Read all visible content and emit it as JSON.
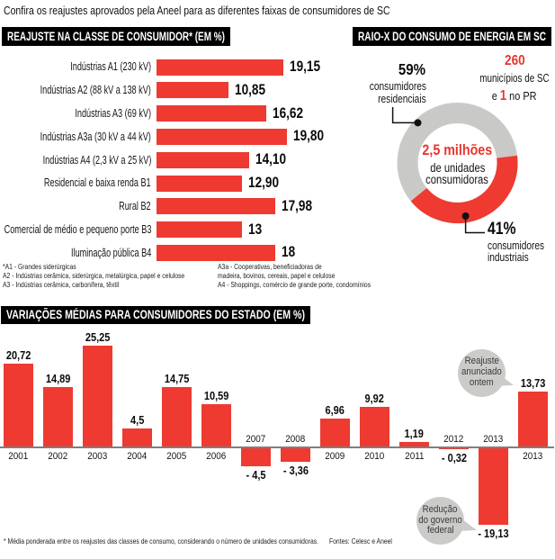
{
  "title": "Confira os reajustes aprovados pela Aneel para as diferentes faixas de consumidores de SC",
  "colors": {
    "red": "#ee3a31",
    "donut_gray": "#c9c9c7",
    "bubble_gray": "#cbcbc9",
    "axis_gray": "#7f7f7f",
    "header_bg": "#000000",
    "header_text": "#ffffff"
  },
  "left_chart": {
    "header": "REAJUSTE NA CLASSE DE CONSUMIDOR* (EM %)",
    "rows": [
      {
        "label": "Indústrias A1 (230 kV)",
        "value": 19.15,
        "display": "19,15"
      },
      {
        "label": "Indústrias A2 (88 kV a 138 kV)",
        "value": 10.85,
        "display": "10,85"
      },
      {
        "label": "Indústrias A3 (69 kV)",
        "value": 16.62,
        "display": "16,62"
      },
      {
        "label": "Indústrias A3a (30 kV a 44 kV)",
        "value": 19.8,
        "display": "19,80"
      },
      {
        "label": "Indústrias A4 (2,3 kV a 25 kV)",
        "value": 14.1,
        "display": "14,10"
      },
      {
        "label": "Residencial e baixa renda B1",
        "value": 12.9,
        "display": "12,90"
      },
      {
        "label": "Rural B2",
        "value": 17.98,
        "display": "17,98"
      },
      {
        "label": "Comercial de médio e pequeno porte B3",
        "value": 13,
        "display": "13"
      },
      {
        "label": "Iluminação pública B4",
        "value": 18,
        "display": "18"
      }
    ],
    "footnotes_left": [
      "*A1 - Grandes siderúrgicas",
      "A2 - Indústrias cerâmica, siderúrgica, metalúrgica, papel e celulose",
      "A3 - Indústrias cerâmica, carbonífera, têxtil"
    ],
    "footnotes_right": [
      "A3a - Cooperativas, beneficiadoras de",
      "madeira, bovinos, cereais, papel e celulose",
      "A4 - Shoppings, comércio de grande porte, condomínios"
    ]
  },
  "donut": {
    "header": "RAIO-X DO CONSUMO DE ENERGIA EM SC",
    "slices": [
      {
        "name": "consumidores residenciais",
        "pct": 59,
        "color": "gray"
      },
      {
        "name": "consumidores industriais",
        "pct": 41,
        "color": "red"
      }
    ],
    "residential": {
      "big": "59%",
      "line1": "consumidores",
      "line2": "residenciais"
    },
    "industrial": {
      "big": "41%",
      "line1": "consumidores",
      "line2": "industriais"
    },
    "center": {
      "big": "2,5 milhões",
      "line1": "de unidades",
      "line2": "consumidoras"
    },
    "municipalities": {
      "big": "260",
      "line1": "municípios de SC",
      "pre": "e",
      "one": "1",
      "post": "no PR"
    }
  },
  "bottom_chart": {
    "header": "VARIAÇÕES MÉDIAS PARA CONSUMIDORES DO ESTADO (EM %)",
    "bars": [
      {
        "year": "2001",
        "value": 20.72,
        "display": "20,72"
      },
      {
        "year": "2002",
        "value": 14.89,
        "display": "14,89"
      },
      {
        "year": "2003",
        "value": 25.25,
        "display": "25,25"
      },
      {
        "year": "2004",
        "value": 4.5,
        "display": "4,5"
      },
      {
        "year": "2005",
        "value": 14.75,
        "display": "14,75"
      },
      {
        "year": "2006",
        "value": 10.59,
        "display": "10,59"
      },
      {
        "year": "2007",
        "value": -4.5,
        "display": "- 4,5"
      },
      {
        "year": "2008",
        "value": -3.36,
        "display": "- 3,36"
      },
      {
        "year": "2009",
        "value": 6.96,
        "display": "6,96"
      },
      {
        "year": "2010",
        "value": 9.92,
        "display": "9,92"
      },
      {
        "year": "2011",
        "value": 1.19,
        "display": "1,19"
      },
      {
        "year": "2012",
        "value": -0.32,
        "display": "- 0,32"
      },
      {
        "year": "2013",
        "value": -19.13,
        "display": "- 19,13"
      },
      {
        "year": "2013",
        "value": 13.73,
        "display": "13,73"
      }
    ],
    "callouts": [
      {
        "lines": [
          "Reajuste",
          "anunciado",
          "ontem"
        ]
      },
      {
        "lines": [
          "Redução",
          "do governo",
          "federal"
        ]
      }
    ]
  },
  "footer": {
    "note": "* Média ponderada entre os reajustes das classes de consumo, considerando o número de unidades consumidoras.",
    "sources": "Fontes: Celesc e Aneel"
  },
  "chart_data": [
    {
      "type": "bar",
      "orientation": "horizontal",
      "title": "REAJUSTE NA CLASSE DE CONSUMIDOR* (EM %)",
      "categories": [
        "Indústrias A1 (230 kV)",
        "Indústrias A2 (88 kV a 138 kV)",
        "Indústrias A3 (69 kV)",
        "Indústrias A3a (30 kV a 44 kV)",
        "Indústrias A4 (2,3 kV a 25 kV)",
        "Residencial e baixa renda B1",
        "Rural B2",
        "Comercial de médio e pequeno porte B3",
        "Iluminação pública B4"
      ],
      "values": [
        19.15,
        10.85,
        16.62,
        19.8,
        14.1,
        12.9,
        17.98,
        13,
        18
      ],
      "xlabel": "",
      "ylabel": "",
      "xlim": [
        0,
        20
      ],
      "grid": false
    },
    {
      "type": "pie",
      "title": "RAIO-X DO CONSUMO DE ENERGIA EM SC",
      "labels": [
        "consumidores residenciais",
        "consumidores industriais"
      ],
      "values": [
        59,
        41
      ],
      "center_label": "2,5 milhões de unidades consumidoras",
      "annotations": [
        "260 municípios de SC e 1 no PR"
      ]
    },
    {
      "type": "bar",
      "orientation": "vertical",
      "title": "VARIAÇÕES MÉDIAS PARA CONSUMIDORES DO ESTADO (EM %)",
      "categories": [
        "2001",
        "2002",
        "2003",
        "2004",
        "2005",
        "2006",
        "2007",
        "2008",
        "2009",
        "2010",
        "2011",
        "2012",
        "2013",
        "2013"
      ],
      "values": [
        20.72,
        14.89,
        25.25,
        4.5,
        14.75,
        10.59,
        -4.5,
        -3.36,
        6.96,
        9.92,
        1.19,
        -0.32,
        -19.13,
        13.73
      ],
      "xlabel": "",
      "ylabel": "",
      "ylim": [
        -20,
        26
      ],
      "grid": false,
      "annotations": [
        "Reajuste anunciado ontem (13,73)",
        "Redução do governo federal (- 19,13)"
      ]
    }
  ]
}
